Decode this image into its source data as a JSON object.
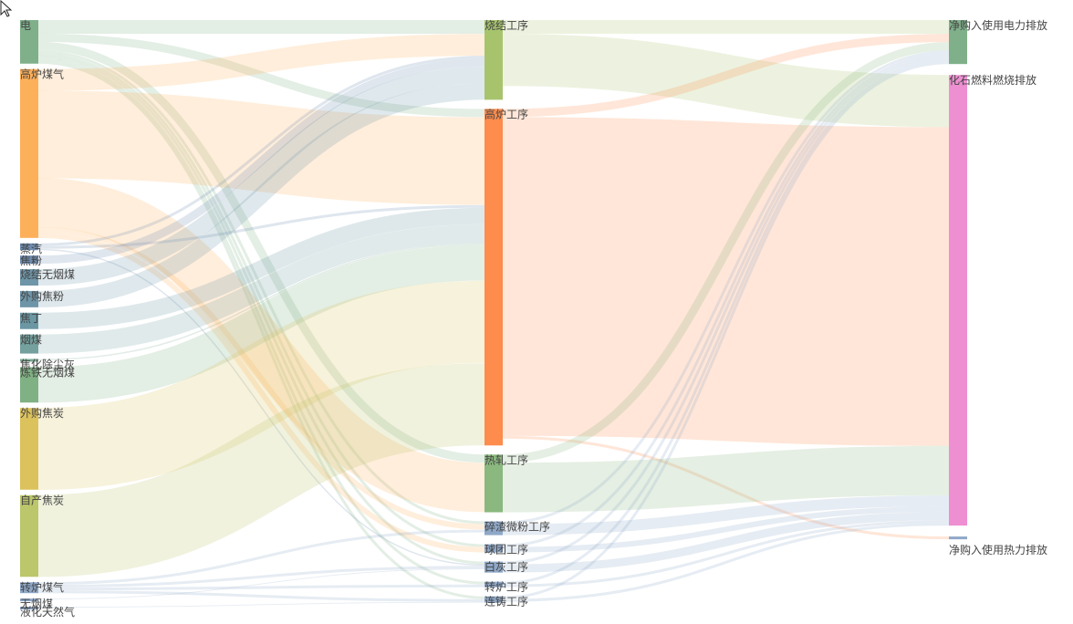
{
  "chart_data": {
    "type": "sankey",
    "columns": [
      [
        "电",
        "高炉煤气",
        "蒸汽",
        "焦粉",
        "烧结无烟煤",
        "外购焦粉",
        "焦丁",
        "烟煤",
        "焦化除尘灰",
        "炼铁无烟煤",
        "外购焦炭",
        "自产焦炭",
        "转炉煤气",
        "无烟煤",
        "液化天然气"
      ],
      [
        "烧结工序",
        "高炉工序",
        "热轧工序",
        "碎渣微粉工序",
        "球团工序",
        "白灰工序",
        "转炉工序",
        "连铸工序"
      ],
      [
        "净购入使用电力排放",
        "化石燃料燃烧排放",
        "净购入使用热力排放"
      ]
    ],
    "nodes": [
      {
        "name": "电",
        "color": "#7fb08a"
      },
      {
        "name": "高炉煤气",
        "color": "#fdb05a"
      },
      {
        "name": "蒸汽",
        "color": "#6f8db0"
      },
      {
        "name": "焦粉",
        "color": "#6f8db0"
      },
      {
        "name": "烧结无烟煤",
        "color": "#6f95a8"
      },
      {
        "name": "外购焦粉",
        "color": "#6f95a8"
      },
      {
        "name": "焦丁",
        "color": "#6b97a3"
      },
      {
        "name": "烟煤",
        "color": "#74a09e"
      },
      {
        "name": "焦化除尘灰",
        "color": "#7aaa92"
      },
      {
        "name": "炼铁无烟煤",
        "color": "#80b184"
      },
      {
        "name": "外购焦炭",
        "color": "#dcc25c"
      },
      {
        "name": "自产焦炭",
        "color": "#bcc66a"
      },
      {
        "name": "转炉煤气",
        "color": "#8fa8c8"
      },
      {
        "name": "无烟煤",
        "color": "#8fa8c8"
      },
      {
        "name": "液化天然气",
        "color": "#8fa8c8"
      },
      {
        "name": "烧结工序",
        "color": "#a7c46d"
      },
      {
        "name": "高炉工序",
        "color": "#fd8c4d"
      },
      {
        "name": "热轧工序",
        "color": "#8ab87e"
      },
      {
        "name": "碎渣微粉工序",
        "color": "#8fa8c8"
      },
      {
        "name": "球团工序",
        "color": "#8fa8c8"
      },
      {
        "name": "白灰工序",
        "color": "#8fa8c8"
      },
      {
        "name": "转炉工序",
        "color": "#8fa8c8"
      },
      {
        "name": "连铸工序",
        "color": "#8fa8c8"
      },
      {
        "name": "净购入使用电力排放",
        "color": "#7fb08a"
      },
      {
        "name": "化石燃料燃烧排放",
        "color": "#ee8fd2"
      },
      {
        "name": "净购入使用热力排放",
        "color": "#8fa8c8"
      }
    ],
    "links": [
      {
        "source": "电",
        "target": "烧结工序",
        "value": 5
      },
      {
        "source": "电",
        "target": "高炉工序",
        "value": 3
      },
      {
        "source": "电",
        "target": "热轧工序",
        "value": 3
      },
      {
        "source": "电",
        "target": "碎渣微粉工序",
        "value": 1
      },
      {
        "source": "电",
        "target": "球团工序",
        "value": 1
      },
      {
        "source": "电",
        "target": "白灰工序",
        "value": 1
      },
      {
        "source": "电",
        "target": "转炉工序",
        "value": 1
      },
      {
        "source": "电",
        "target": "连铸工序",
        "value": 1
      },
      {
        "source": "高炉煤气",
        "target": "烧结工序",
        "value": 8
      },
      {
        "source": "高炉煤气",
        "target": "高炉工序",
        "value": 32
      },
      {
        "source": "高炉煤气",
        "target": "热轧工序",
        "value": 18
      },
      {
        "source": "高炉煤气",
        "target": "碎渣微粉工序",
        "value": 2
      },
      {
        "source": "高炉煤气",
        "target": "球团工序",
        "value": 2
      },
      {
        "source": "蒸汽",
        "target": "烧结工序",
        "value": 1
      },
      {
        "source": "蒸汽",
        "target": "高炉工序",
        "value": 1
      },
      {
        "source": "蒸汽",
        "target": "白灰工序",
        "value": 0.5
      },
      {
        "source": "焦粉",
        "target": "烧结工序",
        "value": 3
      },
      {
        "source": "烧结无烟煤",
        "target": "烧结工序",
        "value": 6
      },
      {
        "source": "外购焦粉",
        "target": "烧结工序",
        "value": 6
      },
      {
        "source": "焦丁",
        "target": "高炉工序",
        "value": 6
      },
      {
        "source": "烟煤",
        "target": "高炉工序",
        "value": 7
      },
      {
        "source": "焦化除尘灰",
        "target": "高炉工序",
        "value": 0.5
      },
      {
        "source": "炼铁无烟煤",
        "target": "高炉工序",
        "value": 13
      },
      {
        "source": "外购焦炭",
        "target": "高炉工序",
        "value": 30
      },
      {
        "source": "自产焦炭",
        "target": "高炉工序",
        "value": 30
      },
      {
        "source": "转炉煤气",
        "target": "碎渣微粉工序",
        "value": 1
      },
      {
        "source": "转炉煤气",
        "target": "白灰工序",
        "value": 1
      },
      {
        "source": "转炉煤气",
        "target": "转炉工序",
        "value": 1
      },
      {
        "source": "转炉煤气",
        "target": "连铸工序",
        "value": 1
      },
      {
        "source": "无烟煤",
        "target": "白灰工序",
        "value": 0.3
      },
      {
        "source": "液化天然气",
        "target": "连铸工序",
        "value": 0.3
      },
      {
        "source": "烧结工序",
        "target": "净购入使用电力排放",
        "value": 5
      },
      {
        "source": "烧结工序",
        "target": "化石燃料燃烧排放",
        "value": 19
      },
      {
        "source": "高炉工序",
        "target": "净购入使用电力排放",
        "value": 3
      },
      {
        "source": "高炉工序",
        "target": "化石燃料燃烧排放",
        "value": 116
      },
      {
        "source": "高炉工序",
        "target": "净购入使用热力排放",
        "value": 1
      },
      {
        "source": "热轧工序",
        "target": "净购入使用电力排放",
        "value": 3
      },
      {
        "source": "热轧工序",
        "target": "化石燃料燃烧排放",
        "value": 18
      },
      {
        "source": "碎渣微粉工序",
        "target": "净购入使用电力排放",
        "value": 1
      },
      {
        "source": "碎渣微粉工序",
        "target": "化石燃料燃烧排放",
        "value": 4
      },
      {
        "source": "球团工序",
        "target": "净购入使用电力排放",
        "value": 1
      },
      {
        "source": "球团工序",
        "target": "化石燃料燃烧排放",
        "value": 2
      },
      {
        "source": "白灰工序",
        "target": "净购入使用电力排放",
        "value": 1
      },
      {
        "source": "白灰工序",
        "target": "化石燃料燃烧排放",
        "value": 3
      },
      {
        "source": "转炉工序",
        "target": "净购入使用电力排放",
        "value": 1
      },
      {
        "source": "转炉工序",
        "target": "化石燃料燃烧排放",
        "value": 1
      },
      {
        "source": "连铸工序",
        "target": "净购入使用电力排放",
        "value": 1
      },
      {
        "source": "连铸工序",
        "target": "化石燃料燃烧排放",
        "value": 1
      }
    ]
  }
}
